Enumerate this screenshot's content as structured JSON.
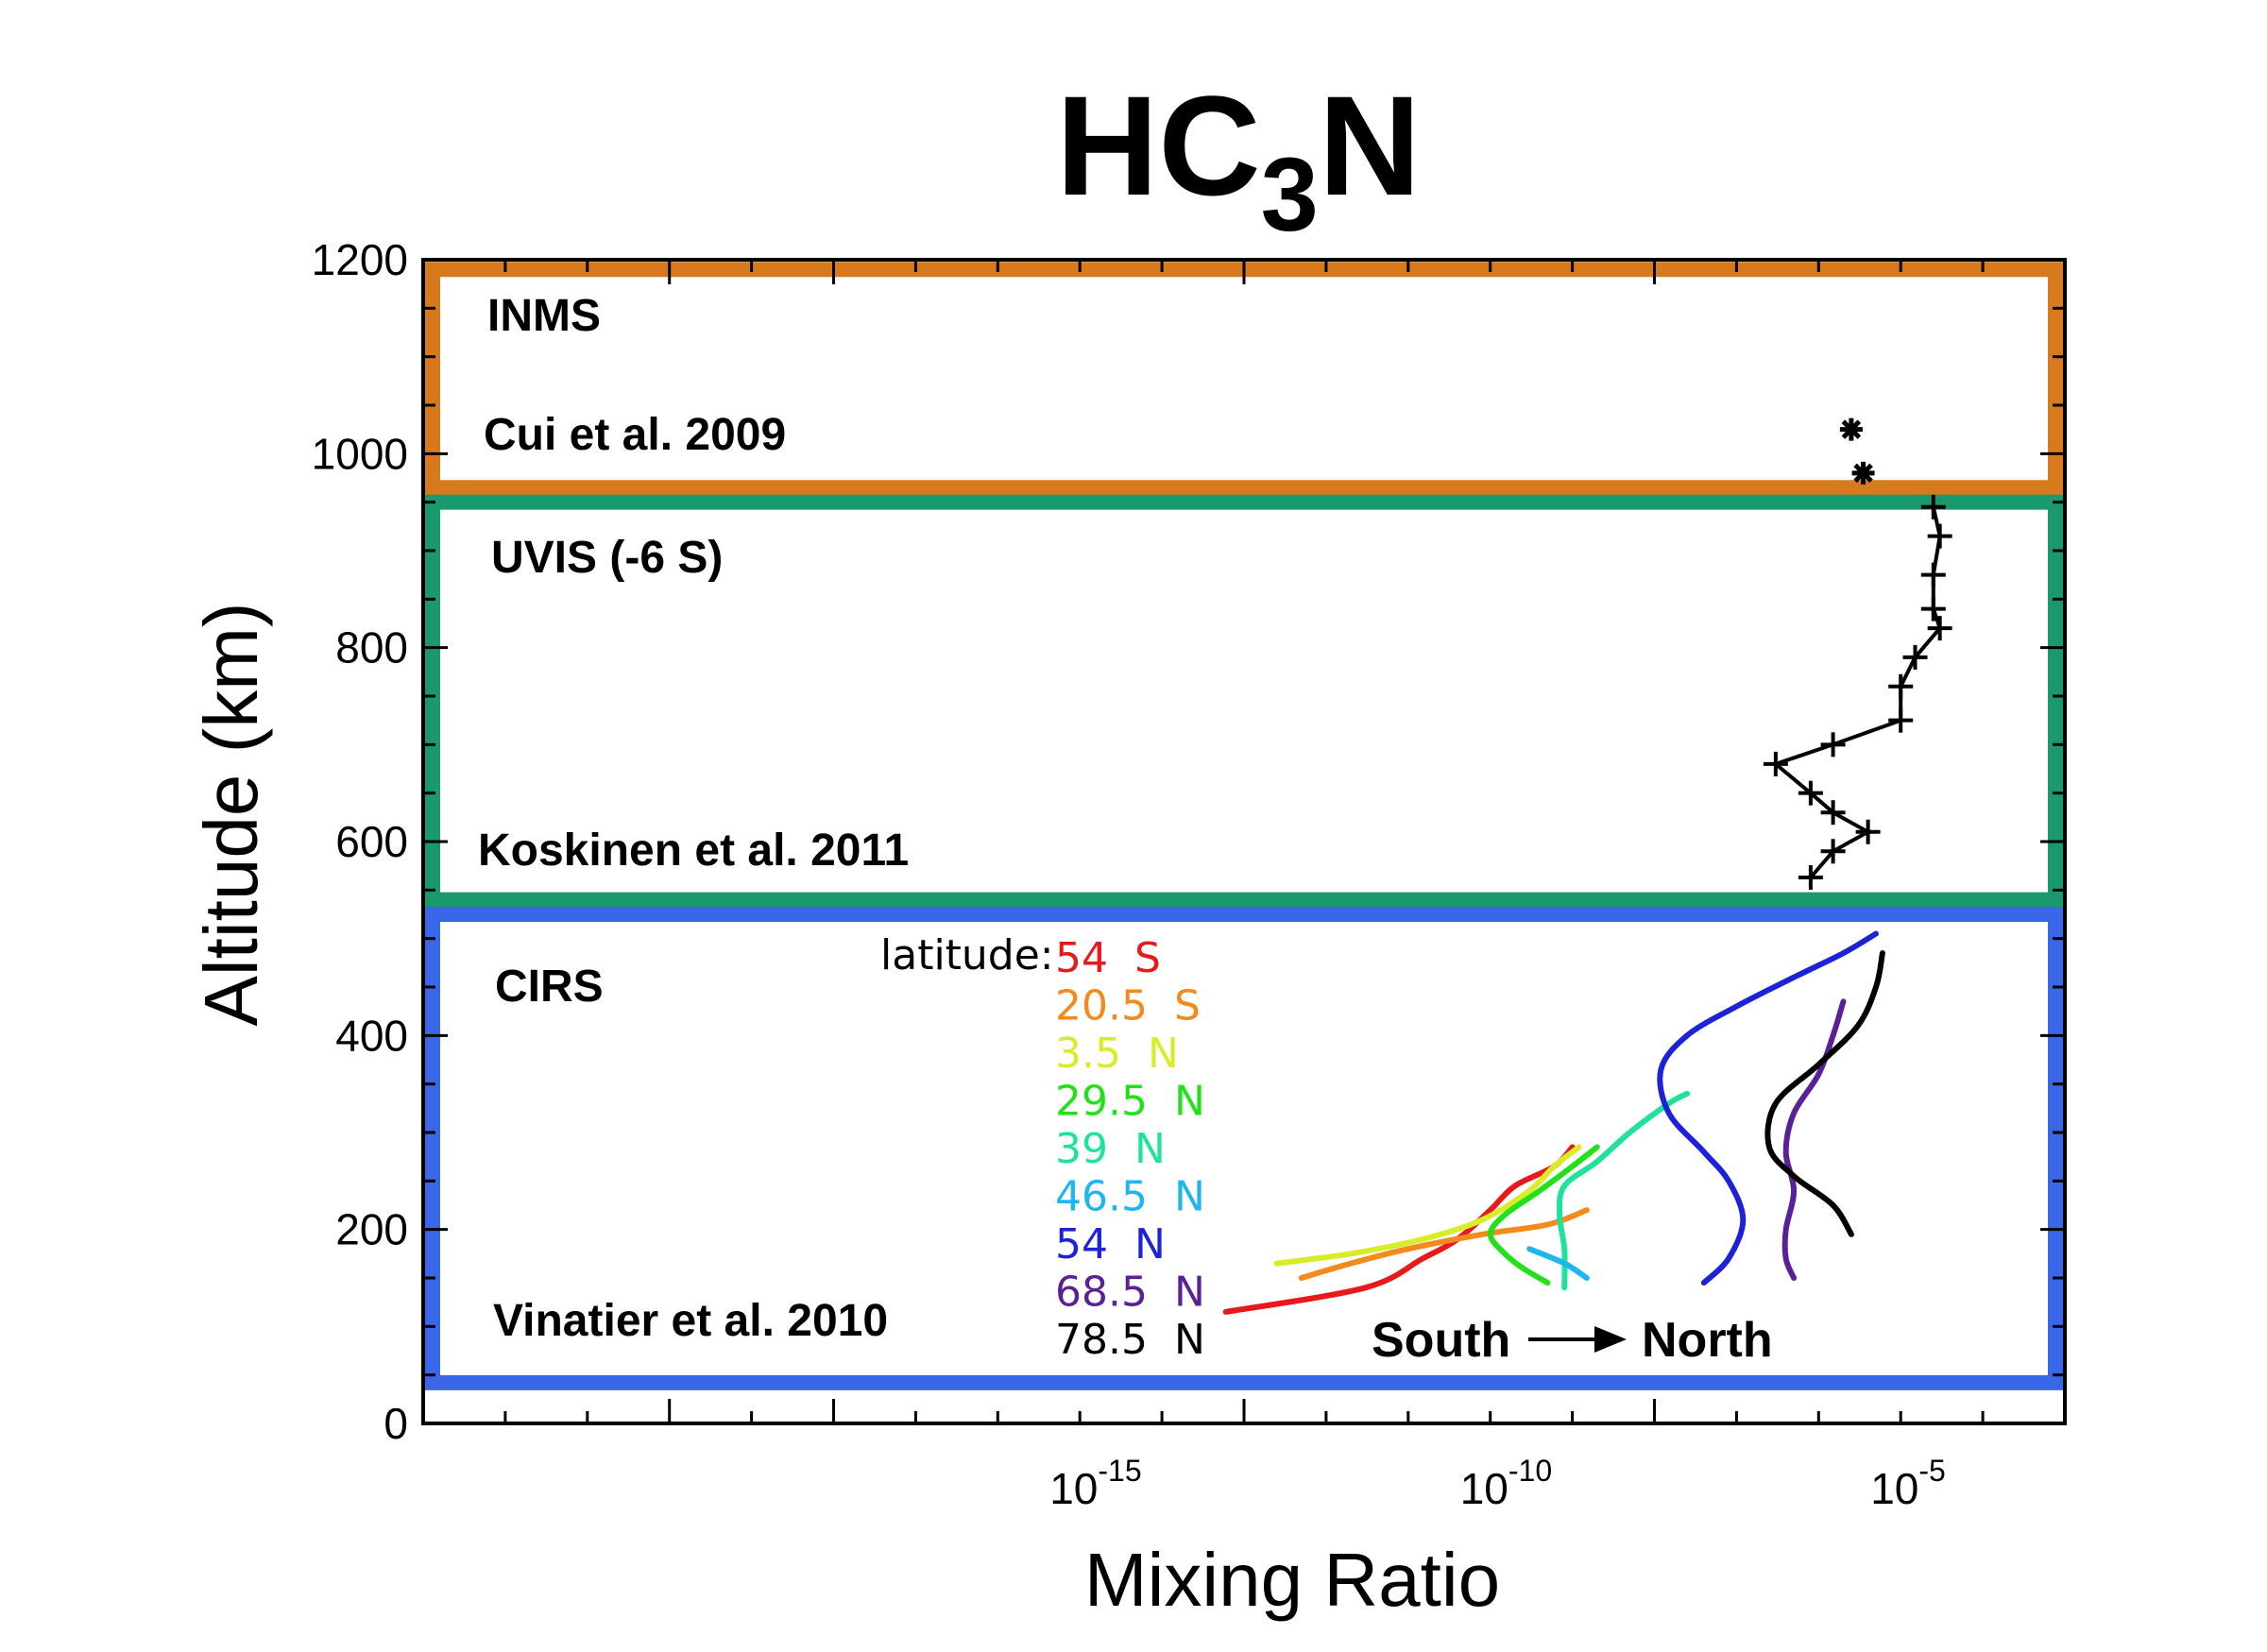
{
  "chart_data": {
    "type": "line",
    "title": "HC",
    "title_subscript": "3",
    "title_suffix": "N",
    "xlabel": "Mixing Ratio",
    "ylabel": "Altitude (km)",
    "x_scale": "log",
    "xlim": [
      1e-23,
      0.001
    ],
    "ylim": [
      0,
      1200
    ],
    "x_ticks": [
      {
        "base": "10",
        "exp": "-15",
        "value": 1e-15
      },
      {
        "base": "10",
        "exp": "-10",
        "value": 1e-10
      },
      {
        "base": "10",
        "exp": "-5",
        "value": 1e-05
      }
    ],
    "y_ticks": [
      {
        "label": "0",
        "value": 0
      },
      {
        "label": "200",
        "value": 200
      },
      {
        "label": "400",
        "value": 400
      },
      {
        "label": "600",
        "value": 600
      },
      {
        "label": "800",
        "value": 800
      },
      {
        "label": "1000",
        "value": 1000
      },
      {
        "label": "1200",
        "value": 1200
      }
    ],
    "regions": [
      {
        "instrument": "INMS",
        "reference": "Cui et al. 2009",
        "color": "#d77a1d",
        "y_range": [
          965,
          1190
        ]
      },
      {
        "instrument": "UVIS (-6 S)",
        "reference": "Koskinen et al. 2011",
        "color": "#1a9a6c",
        "y_range": [
          540,
          950
        ]
      },
      {
        "instrument": "CIRS",
        "reference": "Vinatier et al. 2010",
        "color": "#3a66e8",
        "y_range": [
          42,
          525
        ]
      }
    ],
    "inms_points": [
      {
        "x": 2.5e-06,
        "y": 1025
      },
      {
        "x": 3.5e-06,
        "y": 980
      }
    ],
    "uvis_profile": [
      {
        "x": 2.5e-05,
        "y": 945
      },
      {
        "x": 3e-05,
        "y": 915
      },
      {
        "x": 2.5e-05,
        "y": 875
      },
      {
        "x": 2.5e-05,
        "y": 840
      },
      {
        "x": 3e-05,
        "y": 820
      },
      {
        "x": 1.5e-05,
        "y": 790
      },
      {
        "x": 1e-05,
        "y": 760
      },
      {
        "x": 1e-05,
        "y": 725
      },
      {
        "x": 1.5e-06,
        "y": 700
      },
      {
        "x": 3e-07,
        "y": 680
      },
      {
        "x": 8e-07,
        "y": 650
      },
      {
        "x": 1.5e-06,
        "y": 630
      },
      {
        "x": 4e-06,
        "y": 610
      },
      {
        "x": 1.5e-06,
        "y": 590
      },
      {
        "x": 8e-07,
        "y": 563
      }
    ],
    "legend_title": "latitude:",
    "series": [
      {
        "name": "54 S",
        "color": "#e8191b",
        "points": [
          [
            6e-14,
            115
          ],
          [
            3e-12,
            140
          ],
          [
            1.5e-11,
            170
          ],
          [
            4e-11,
            190
          ],
          [
            1e-10,
            220
          ],
          [
            2e-10,
            245
          ],
          [
            6e-10,
            265
          ],
          [
            1e-09,
            285
          ]
        ]
      },
      {
        "name": "20.5 S",
        "color": "#f28a1e",
        "points": [
          [
            5e-13,
            150
          ],
          [
            2e-12,
            165
          ],
          [
            1e-11,
            180
          ],
          [
            8e-11,
            195
          ],
          [
            5e-10,
            205
          ],
          [
            1.5e-09,
            220
          ]
        ]
      },
      {
        "name": "3.5 N",
        "color": "#d8ec2a",
        "points": [
          [
            2.5e-13,
            165
          ],
          [
            2e-12,
            175
          ],
          [
            1.5e-11,
            190
          ],
          [
            8e-11,
            210
          ],
          [
            3e-10,
            240
          ],
          [
            6e-10,
            265
          ],
          [
            1.2e-09,
            285
          ]
        ]
      },
      {
        "name": "29.5 N",
        "color": "#22e11a",
        "points": [
          [
            5e-10,
            145
          ],
          [
            2.5e-10,
            160
          ],
          [
            1.5e-10,
            175
          ],
          [
            1e-10,
            195
          ],
          [
            1.5e-10,
            215
          ],
          [
            4e-10,
            240
          ],
          [
            1e-09,
            265
          ],
          [
            2e-09,
            285
          ]
        ]
      },
      {
        "name": "39 N",
        "color": "#1fe39a",
        "points": [
          [
            8e-10,
            140
          ],
          [
            8e-10,
            180
          ],
          [
            7e-10,
            215
          ],
          [
            8e-10,
            245
          ],
          [
            2e-09,
            270
          ],
          [
            5e-09,
            300
          ],
          [
            1.5e-08,
            330
          ],
          [
            2.5e-08,
            340
          ]
        ]
      },
      {
        "name": "46.5 N",
        "color": "#1fb5ee",
        "points": [
          [
            1.5e-09,
            150
          ],
          [
            8e-10,
            165
          ],
          [
            3e-10,
            180
          ]
        ]
      },
      {
        "name": "54 N",
        "color": "#1d22d8",
        "points": [
          [
            4e-08,
            145
          ],
          [
            8e-08,
            170
          ],
          [
            1.2e-07,
            210
          ],
          [
            8e-08,
            250
          ],
          [
            4e-08,
            280
          ],
          [
            1.5e-08,
            320
          ],
          [
            1.2e-08,
            365
          ],
          [
            2.5e-08,
            400
          ],
          [
            1e-07,
            430
          ],
          [
            5e-07,
            460
          ],
          [
            2e-06,
            485
          ],
          [
            5e-06,
            505
          ]
        ]
      },
      {
        "name": "68.5 N",
        "color": "#5a2196",
        "points": [
          [
            5e-07,
            150
          ],
          [
            4e-07,
            170
          ],
          [
            4e-07,
            200
          ],
          [
            5e-07,
            240
          ],
          [
            4e-07,
            280
          ],
          [
            5e-07,
            320
          ],
          [
            1e-06,
            360
          ],
          [
            1.5e-06,
            400
          ],
          [
            2e-06,
            435
          ]
        ]
      },
      {
        "name": "78.5 N",
        "color": "#000000",
        "points": [
          [
            2.5e-06,
            195
          ],
          [
            1.5e-06,
            225
          ],
          [
            5e-07,
            255
          ],
          [
            2.5e-07,
            285
          ],
          [
            3e-07,
            330
          ],
          [
            1e-06,
            370
          ],
          [
            3e-06,
            410
          ],
          [
            5e-06,
            450
          ],
          [
            6e-06,
            485
          ]
        ]
      }
    ],
    "annotation": {
      "from": "South",
      "to": "North"
    },
    "grid": false,
    "legend_position": "inside-bottom-left"
  }
}
